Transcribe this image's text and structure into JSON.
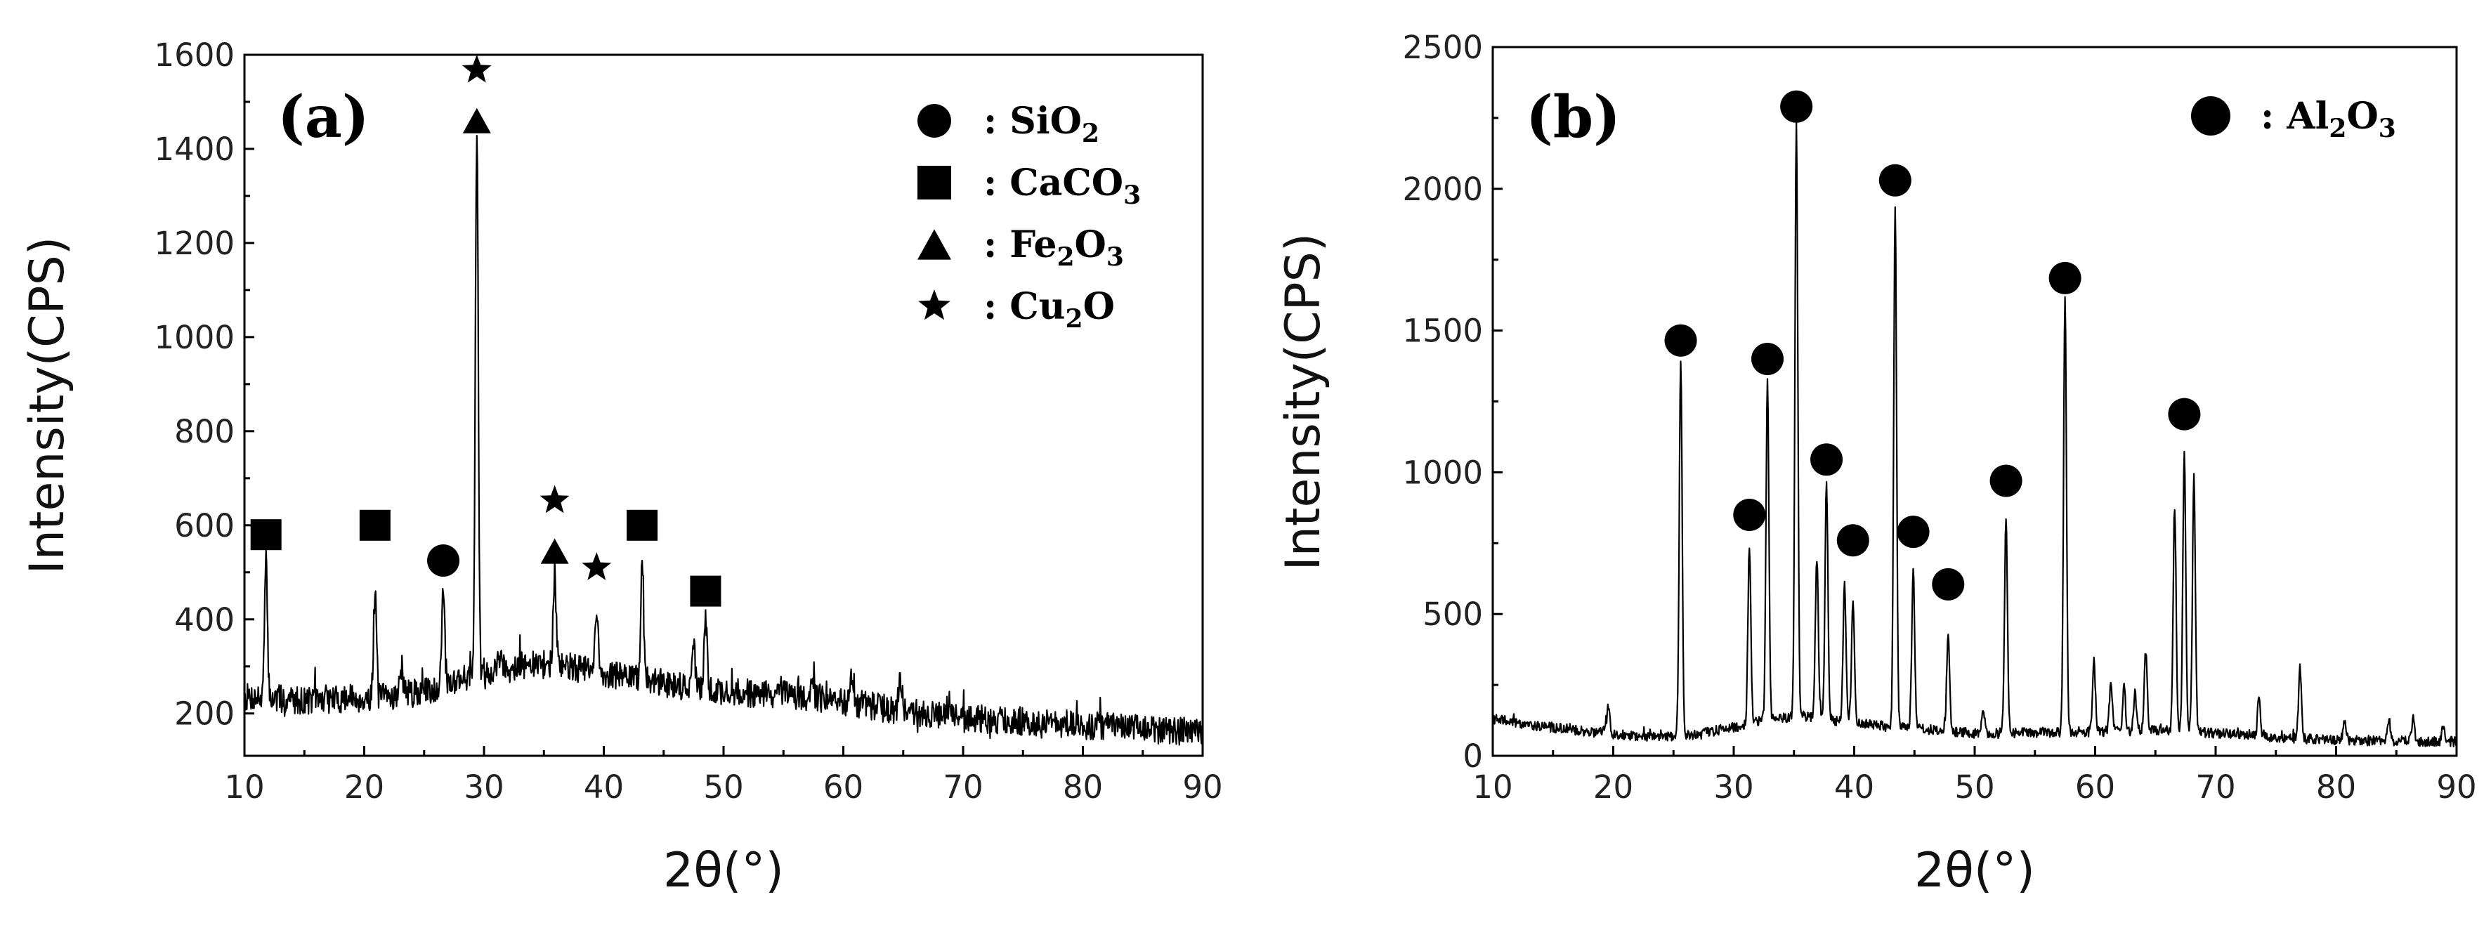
{
  "chart_data": [
    {
      "panel": "(a)",
      "type": "line",
      "xlabel": "2θ(°)",
      "ylabel": "Intensity(CPS)",
      "xlim": [
        10,
        90
      ],
      "ylim": [
        110,
        1600
      ],
      "xticks": [
        10,
        20,
        30,
        40,
        50,
        60,
        70,
        80,
        90
      ],
      "yticks": [
        200,
        400,
        600,
        800,
        1000,
        1200,
        1400,
        1600
      ],
      "background": [
        [
          10,
          235
        ],
        [
          15,
          228
        ],
        [
          20,
          232
        ],
        [
          25,
          245
        ],
        [
          28,
          275
        ],
        [
          32,
          300
        ],
        [
          36,
          305
        ],
        [
          40,
          285
        ],
        [
          45,
          265
        ],
        [
          50,
          245
        ],
        [
          55,
          240
        ],
        [
          60,
          225
        ],
        [
          65,
          205
        ],
        [
          70,
          190
        ],
        [
          80,
          175
        ],
        [
          90,
          160
        ]
      ],
      "noise_amplitude": 30,
      "peaks": [
        {
          "x": 11.8,
          "y": 520,
          "marker": "square",
          "marker_y": 580
        },
        {
          "x": 20.9,
          "y": 460,
          "marker": "square",
          "marker_y": 600
        },
        {
          "x": 23.1,
          "y": 300
        },
        {
          "x": 26.6,
          "y": 470,
          "marker": "circle",
          "marker_y": 525
        },
        {
          "x": 29.4,
          "y": 1440,
          "marker": "triangle-star",
          "marker_y": 1460
        },
        {
          "x": 31.4,
          "y": 330
        },
        {
          "x": 35.9,
          "y": 500,
          "marker": "triangle-star",
          "marker_y": 545
        },
        {
          "x": 39.4,
          "y": 420,
          "marker": "star",
          "marker_y": 510
        },
        {
          "x": 43.2,
          "y": 510,
          "marker": "square",
          "marker_y": 600
        },
        {
          "x": 47.5,
          "y": 350
        },
        {
          "x": 48.5,
          "y": 400,
          "marker": "square",
          "marker_y": 460
        },
        {
          "x": 57.4,
          "y": 290
        },
        {
          "x": 60.7,
          "y": 280
        },
        {
          "x": 64.7,
          "y": 265
        }
      ],
      "legend": [
        {
          "symbol": "circle",
          "label": ": SiO",
          "sub1": "2",
          "mid": "",
          "sub2": ""
        },
        {
          "symbol": "square",
          "label": ": CaCO",
          "sub1": "3",
          "mid": "",
          "sub2": ""
        },
        {
          "symbol": "triangle",
          "label": ": Fe",
          "sub1": "2",
          "mid": "O",
          "sub2": "3"
        },
        {
          "symbol": "star",
          "label": ": Cu",
          "sub1": "2",
          "mid": "O",
          "sub2": ""
        }
      ],
      "legend_position": "top-right"
    },
    {
      "panel": "(b)",
      "type": "line",
      "xlabel": "2θ(°)",
      "ylabel": "Intensity(CPS)",
      "xlim": [
        10,
        90
      ],
      "ylim": [
        0,
        2500
      ],
      "xticks": [
        10,
        20,
        30,
        40,
        50,
        60,
        70,
        80,
        90
      ],
      "yticks": [
        0,
        500,
        1000,
        1500,
        2000,
        2500
      ],
      "background": [
        [
          10,
          130
        ],
        [
          14,
          105
        ],
        [
          18,
          85
        ],
        [
          22,
          70
        ],
        [
          26,
          70
        ],
        [
          30,
          100
        ],
        [
          33,
          130
        ],
        [
          36,
          140
        ],
        [
          40,
          115
        ],
        [
          45,
          95
        ],
        [
          50,
          80
        ],
        [
          60,
          85
        ],
        [
          65,
          90
        ],
        [
          70,
          80
        ],
        [
          75,
          65
        ],
        [
          80,
          55
        ],
        [
          90,
          50
        ]
      ],
      "noise_amplitude": 18,
      "peaks": [
        {
          "x": 16.5,
          "y": 100
        },
        {
          "x": 19.6,
          "y": 180
        },
        {
          "x": 25.6,
          "y": 1380,
          "marker": "circle",
          "marker_y": 1465
        },
        {
          "x": 31.3,
          "y": 730,
          "marker": "circle",
          "marker_y": 850
        },
        {
          "x": 32.8,
          "y": 1320,
          "marker": "circle",
          "marker_y": 1400
        },
        {
          "x": 35.2,
          "y": 2220,
          "marker": "circle",
          "marker_y": 2290
        },
        {
          "x": 36.9,
          "y": 700
        },
        {
          "x": 37.7,
          "y": 960,
          "marker": "circle",
          "marker_y": 1045
        },
        {
          "x": 39.2,
          "y": 600
        },
        {
          "x": 39.9,
          "y": 540,
          "marker": "circle",
          "marker_y": 760
        },
        {
          "x": 43.4,
          "y": 1930,
          "marker": "circle",
          "marker_y": 2030
        },
        {
          "x": 44.9,
          "y": 650,
          "marker": "circle",
          "marker_y": 790
        },
        {
          "x": 47.8,
          "y": 440,
          "marker": "circle",
          "marker_y": 605
        },
        {
          "x": 50.7,
          "y": 170
        },
        {
          "x": 52.6,
          "y": 840,
          "marker": "circle",
          "marker_y": 970
        },
        {
          "x": 57.5,
          "y": 1620,
          "marker": "circle",
          "marker_y": 1685
        },
        {
          "x": 59.9,
          "y": 330
        },
        {
          "x": 61.3,
          "y": 260
        },
        {
          "x": 62.4,
          "y": 240
        },
        {
          "x": 63.3,
          "y": 220
        },
        {
          "x": 64.2,
          "y": 370
        },
        {
          "x": 66.6,
          "y": 880
        },
        {
          "x": 67.4,
          "y": 1090,
          "marker": "circle",
          "marker_y": 1205
        },
        {
          "x": 68.2,
          "y": 980
        },
        {
          "x": 73.6,
          "y": 200
        },
        {
          "x": 77.0,
          "y": 310
        },
        {
          "x": 80.7,
          "y": 130
        },
        {
          "x": 84.4,
          "y": 120
        },
        {
          "x": 86.4,
          "y": 130
        },
        {
          "x": 88.9,
          "y": 110
        }
      ],
      "legend": [
        {
          "symbol": "circle",
          "label": ": Al",
          "sub1": "2",
          "mid": "O",
          "sub2": "3"
        }
      ],
      "legend_position": "top-right"
    }
  ]
}
